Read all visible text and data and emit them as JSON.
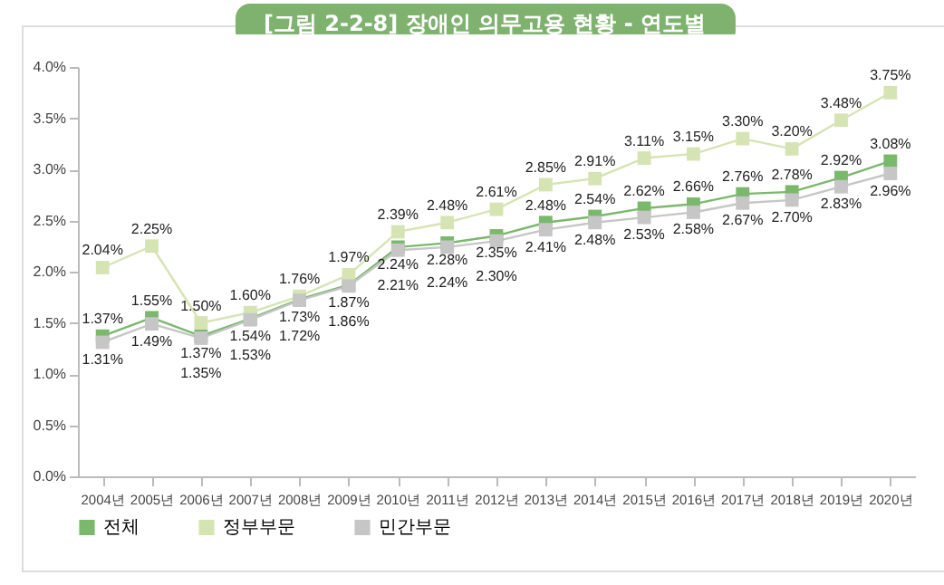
{
  "chart_data": {
    "type": "line",
    "title": "[그림 2-2-8] 장애인 의무고용 현황 - 연도별",
    "categories": [
      "2004년",
      "2005년",
      "2006년",
      "2007년",
      "2008년",
      "2009년",
      "2010년",
      "2011년",
      "2012년",
      "2013년",
      "2014년",
      "2015년",
      "2016년",
      "2017년",
      "2018년",
      "2019년",
      "2020년"
    ],
    "series": [
      {
        "name": "전체",
        "color": "#7ab86c",
        "values": [
          1.37,
          1.55,
          1.37,
          1.54,
          1.73,
          1.87,
          2.24,
          2.28,
          2.35,
          2.48,
          2.54,
          2.62,
          2.66,
          2.76,
          2.78,
          2.92,
          3.08
        ],
        "value_labels": [
          "1.37%",
          "1.55%",
          "1.37%",
          "1.54%",
          "1.73%",
          "1.87%",
          "2.24%",
          "2.28%",
          "2.35%",
          "2.48%",
          "2.54%",
          "2.62%",
          "2.66%",
          "2.76%",
          "2.78%",
          "2.92%",
          "3.08%"
        ]
      },
      {
        "name": "정부부문",
        "color": "#d6e4b4",
        "values": [
          2.04,
          2.25,
          1.5,
          1.6,
          1.76,
          1.97,
          2.39,
          2.48,
          2.61,
          2.85,
          2.91,
          3.11,
          3.15,
          3.3,
          3.2,
          3.48,
          3.75
        ],
        "value_labels": [
          "2.04%",
          "2.25%",
          "1.50%",
          "1.60%",
          "1.76%",
          "1.97%",
          "2.39%",
          "2.48%",
          "2.61%",
          "2.85%",
          "2.91%",
          "3.11%",
          "3.15%",
          "3.30%",
          "3.20%",
          "3.48%",
          "3.75%"
        ]
      },
      {
        "name": "민간부문",
        "color": "#c6c6c6",
        "values": [
          1.31,
          1.49,
          1.35,
          1.53,
          1.72,
          1.86,
          2.21,
          2.24,
          2.3,
          2.41,
          2.48,
          2.53,
          2.58,
          2.67,
          2.7,
          2.83,
          2.96
        ],
        "value_labels": [
          "1.31%",
          "1.49%",
          "1.35%",
          "1.53%",
          "1.72%",
          "1.86%",
          "2.21%",
          "2.24%",
          "2.30%",
          "2.41%",
          "2.48%",
          "2.53%",
          "2.58%",
          "2.67%",
          "2.70%",
          "2.83%",
          "2.96%"
        ]
      }
    ],
    "ylim": [
      0,
      4
    ],
    "yticks": [
      {
        "value": 0,
        "label": "0.0%"
      },
      {
        "value": 0.5,
        "label": "0.5%"
      },
      {
        "value": 1,
        "label": "1.0%"
      },
      {
        "value": 1.5,
        "label": "1.5%"
      },
      {
        "value": 2,
        "label": "2.0%"
      },
      {
        "value": 2.5,
        "label": "2.5%"
      },
      {
        "value": 3,
        "label": "3.0%"
      },
      {
        "value": 3.5,
        "label": "3.5%"
      },
      {
        "value": 4,
        "label": "4.0%"
      }
    ],
    "grid": false,
    "legend": "bottom",
    "marker": "square",
    "line_style": "solid"
  }
}
